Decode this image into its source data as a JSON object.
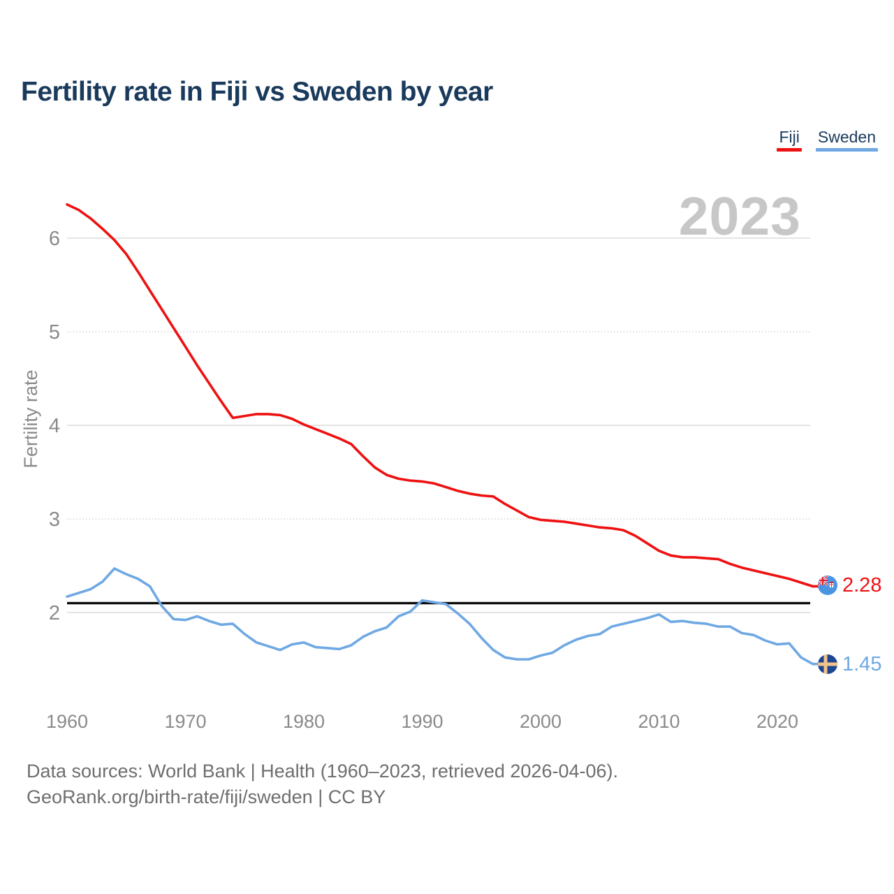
{
  "header": {
    "title": "Fertility rate in Fiji vs Sweden by year"
  },
  "footer": {
    "line1": "Data sources: World Bank | Health (1960–2023, retrieved 2026-04-06).",
    "line2": "GeoRank.org/birth-rate/fiji/sweden | CC BY"
  },
  "chart_data": {
    "type": "line",
    "title": "Fertility rate in Fiji vs Sweden by year",
    "xlabel": "",
    "ylabel": "Fertility rate",
    "watermark": "2023",
    "grid": "horizontal",
    "legend_position": "top-right",
    "xlim": [
      1960,
      2023
    ],
    "ylim": [
      1.4,
      6.4
    ],
    "x_ticks": [
      1960,
      1970,
      1980,
      1990,
      2000,
      2010,
      2020
    ],
    "y_ticks": [
      2,
      3,
      4,
      5,
      6
    ],
    "reference_line": {
      "value": 2.1,
      "color": "#0d0d0d"
    },
    "years": [
      1960,
      1961,
      1962,
      1963,
      1964,
      1965,
      1966,
      1967,
      1968,
      1969,
      1970,
      1971,
      1972,
      1973,
      1974,
      1975,
      1976,
      1977,
      1978,
      1979,
      1980,
      1981,
      1982,
      1983,
      1984,
      1985,
      1986,
      1987,
      1988,
      1989,
      1990,
      1991,
      1992,
      1993,
      1994,
      1995,
      1996,
      1997,
      1998,
      1999,
      2000,
      2001,
      2002,
      2003,
      2004,
      2005,
      2006,
      2007,
      2008,
      2009,
      2010,
      2011,
      2012,
      2013,
      2014,
      2015,
      2016,
      2017,
      2018,
      2019,
      2020,
      2021,
      2022,
      2023
    ],
    "series": [
      {
        "name": "Fiji",
        "color": "#ee1111",
        "end_label": "2.28",
        "values": [
          6.36,
          6.3,
          6.21,
          6.1,
          5.98,
          5.83,
          5.64,
          5.44,
          5.24,
          5.04,
          4.84,
          4.64,
          4.45,
          4.26,
          4.08,
          4.1,
          4.12,
          4.12,
          4.11,
          4.07,
          4.01,
          3.96,
          3.91,
          3.86,
          3.8,
          3.67,
          3.55,
          3.47,
          3.43,
          3.41,
          3.4,
          3.38,
          3.34,
          3.3,
          3.27,
          3.25,
          3.24,
          3.16,
          3.09,
          3.02,
          2.99,
          2.98,
          2.97,
          2.95,
          2.93,
          2.91,
          2.9,
          2.88,
          2.82,
          2.74,
          2.66,
          2.61,
          2.59,
          2.59,
          2.58,
          2.57,
          2.52,
          2.48,
          2.45,
          2.42,
          2.39,
          2.36,
          2.32,
          2.28
        ]
      },
      {
        "name": "Sweden",
        "color": "#6fa8e3",
        "end_label": "1.45",
        "values": [
          2.17,
          2.21,
          2.25,
          2.33,
          2.47,
          2.41,
          2.36,
          2.28,
          2.07,
          1.93,
          1.92,
          1.96,
          1.91,
          1.87,
          1.88,
          1.77,
          1.68,
          1.64,
          1.6,
          1.66,
          1.68,
          1.63,
          1.62,
          1.61,
          1.65,
          1.74,
          1.8,
          1.84,
          1.96,
          2.01,
          2.13,
          2.11,
          2.09,
          1.99,
          1.88,
          1.73,
          1.6,
          1.52,
          1.5,
          1.5,
          1.54,
          1.57,
          1.65,
          1.71,
          1.75,
          1.77,
          1.85,
          1.88,
          1.91,
          1.94,
          1.98,
          1.9,
          1.91,
          1.89,
          1.88,
          1.85,
          1.85,
          1.78,
          1.76,
          1.7,
          1.66,
          1.67,
          1.52,
          1.45
        ]
      }
    ]
  }
}
